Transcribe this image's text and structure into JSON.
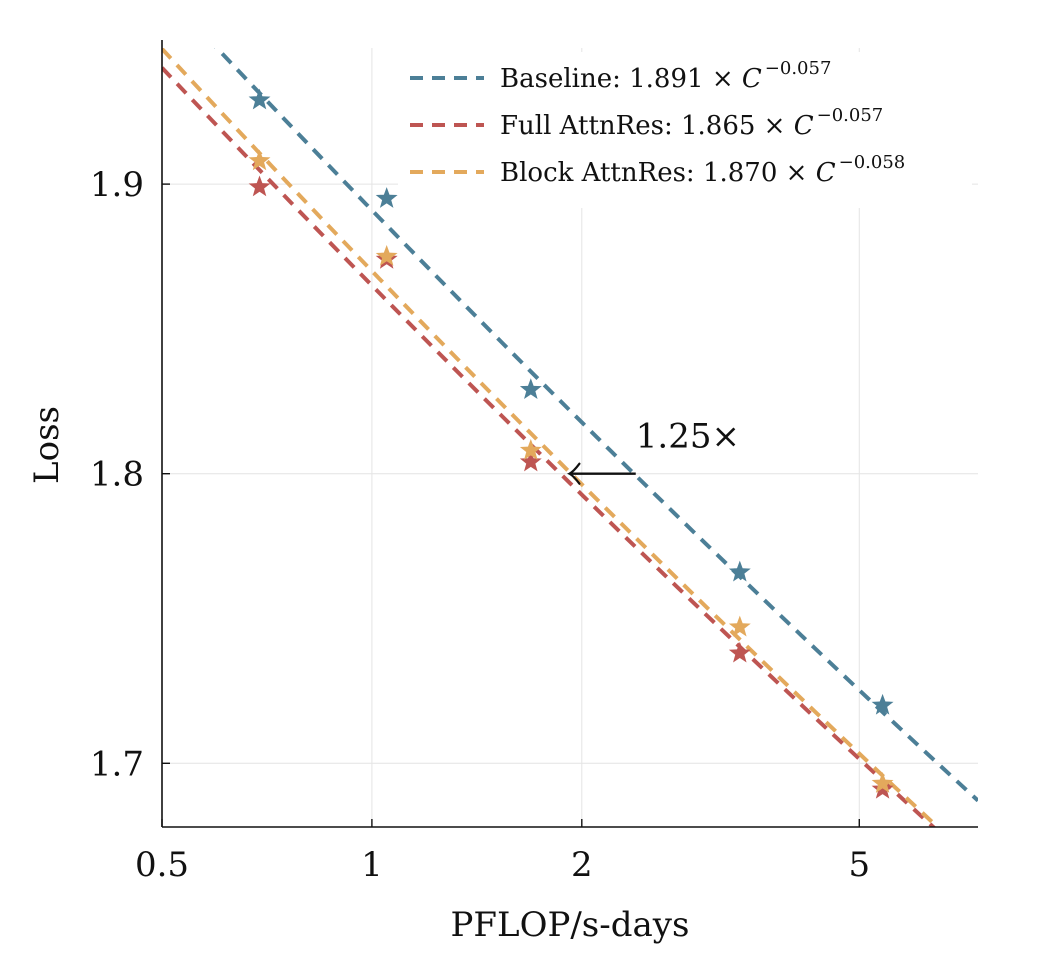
{
  "chart_data": {
    "type": "line",
    "xlabel": "PFLOP/s-days",
    "ylabel": "Loss",
    "xscale": "log",
    "xlim": [
      0.5,
      7.4
    ],
    "ylim": [
      1.678,
      1.947
    ],
    "xticks": [
      {
        "value": 0.5,
        "label": "0.5"
      },
      {
        "value": 1,
        "label": "1"
      },
      {
        "value": 2,
        "label": "2"
      },
      {
        "value": 5,
        "label": "5"
      }
    ],
    "yticks": [
      {
        "value": 1.7,
        "label": "1.7"
      },
      {
        "value": 1.8,
        "label": "1.8"
      },
      {
        "value": 1.9,
        "label": "1.9"
      }
    ],
    "grid": true,
    "legend_position": "top-right",
    "series": [
      {
        "key": "baseline",
        "name": "Baseline",
        "fit_coef": 1.891,
        "fit_exp": -0.057,
        "fit_coef_label": "1.891",
        "fit_exp_label": "−0.057",
        "color": "#4c7f97",
        "x": [
          0.69,
          1.05,
          1.69,
          3.37,
          5.4
        ],
        "y": [
          1.929,
          1.895,
          1.829,
          1.766,
          1.72
        ]
      },
      {
        "key": "full",
        "name": "Full AttnRes",
        "fit_coef": 1.865,
        "fit_exp": -0.057,
        "fit_coef_label": "1.865",
        "fit_exp_label": "−0.057",
        "color": "#be5552",
        "x": [
          0.69,
          1.05,
          1.69,
          3.37,
          5.4
        ],
        "y": [
          1.899,
          1.874,
          1.804,
          1.738,
          1.691
        ]
      },
      {
        "key": "block",
        "name": "Block AttnRes",
        "fit_coef": 1.87,
        "fit_exp": -0.058,
        "fit_coef_label": "1.870",
        "fit_exp_label": "−0.058",
        "color": "#e3a95c",
        "x": [
          0.69,
          1.05,
          1.69,
          3.37,
          5.4
        ],
        "y": [
          1.908,
          1.875,
          1.808,
          1.747,
          1.693
        ]
      }
    ],
    "annotations": [
      {
        "text": "1.25×",
        "arrow_from": [
          2.39,
          1.8
        ],
        "arrow_to": [
          1.92,
          1.8
        ]
      }
    ]
  }
}
